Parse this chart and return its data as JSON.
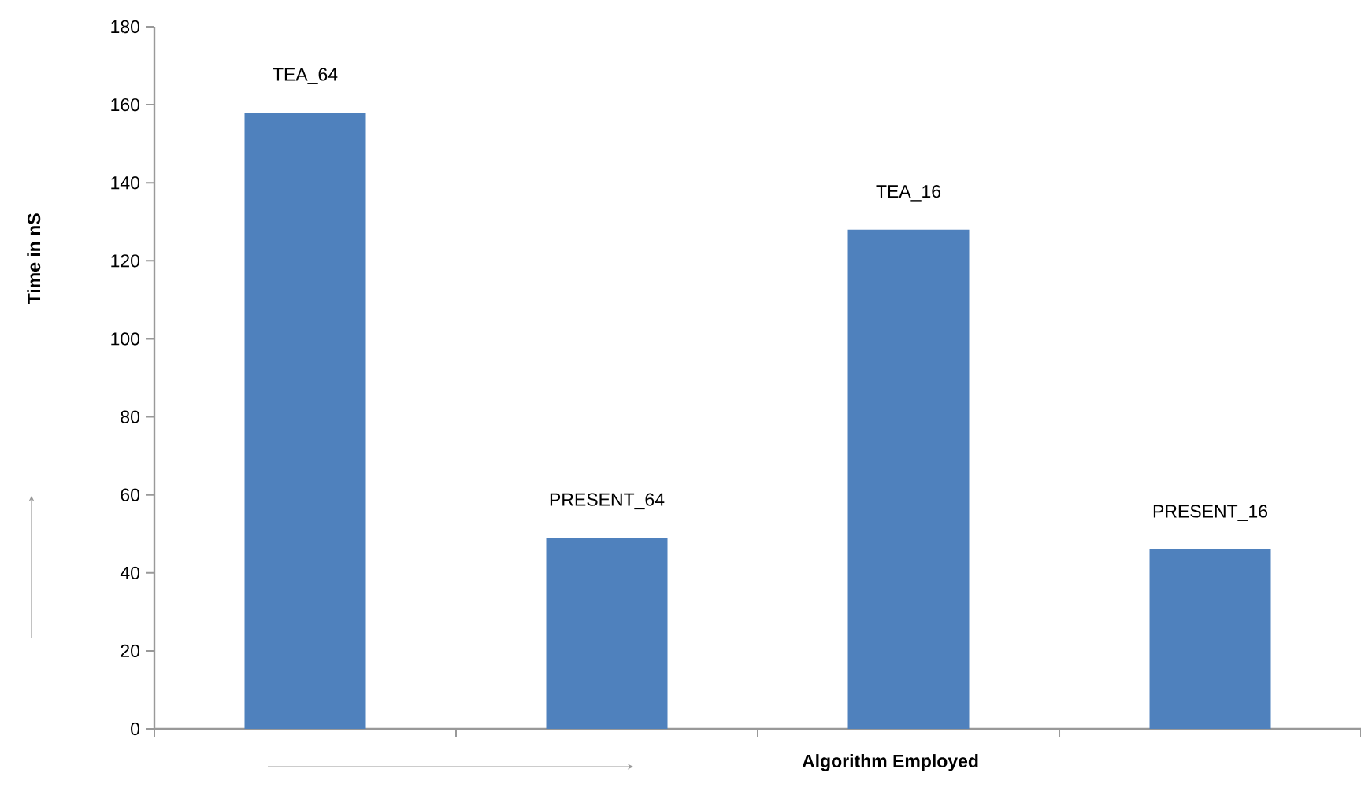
{
  "chart_data": {
    "type": "bar",
    "xlabel": "Algorithm Employed",
    "ylabel": "Time in nS",
    "categories": [
      "TEA_64",
      "PRESENT_64",
      "TEA_16",
      "PRESENT_16"
    ],
    "values": [
      158,
      49,
      128,
      46
    ],
    "color": "#4f81bd",
    "ylim": [
      0,
      180
    ],
    "yticks": [
      0,
      20,
      40,
      60,
      80,
      100,
      120,
      140,
      160,
      180
    ],
    "grid": false
  }
}
